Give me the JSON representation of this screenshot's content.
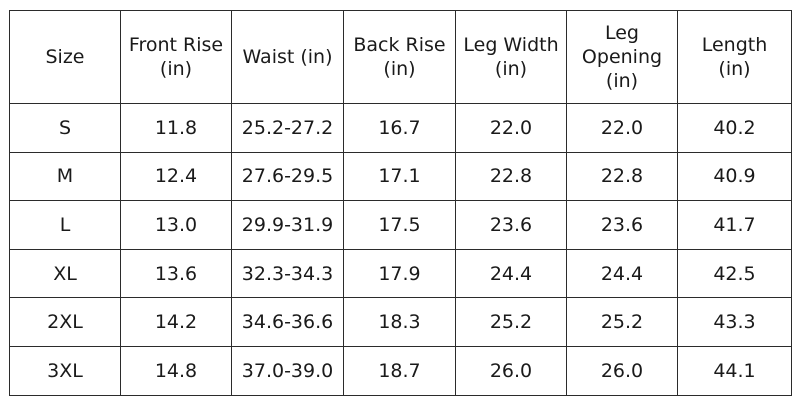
{
  "table": {
    "headers": [
      [
        "Size"
      ],
      [
        "Front Rise",
        "(in)"
      ],
      [
        "Waist (in)"
      ],
      [
        "Back Rise",
        "(in)"
      ],
      [
        "Leg Width",
        "(in)"
      ],
      [
        "Leg",
        "Opening",
        "(in)"
      ],
      [
        "Length",
        "(in)"
      ]
    ],
    "rows": [
      [
        "S",
        "11.8",
        "25.2-27.2",
        "16.7",
        "22.0",
        "22.0",
        "40.2"
      ],
      [
        "M",
        "12.4",
        "27.6-29.5",
        "17.1",
        "22.8",
        "22.8",
        "40.9"
      ],
      [
        "L",
        "13.0",
        "29.9-31.9",
        "17.5",
        "23.6",
        "23.6",
        "41.7"
      ],
      [
        "XL",
        "13.6",
        "32.3-34.3",
        "17.9",
        "24.4",
        "24.4",
        "42.5"
      ],
      [
        "2XL",
        "14.2",
        "34.6-36.6",
        "18.3",
        "25.2",
        "25.2",
        "43.3"
      ],
      [
        "3XL",
        "14.8",
        "37.0-39.0",
        "18.7",
        "26.0",
        "26.0",
        "44.1"
      ]
    ]
  }
}
